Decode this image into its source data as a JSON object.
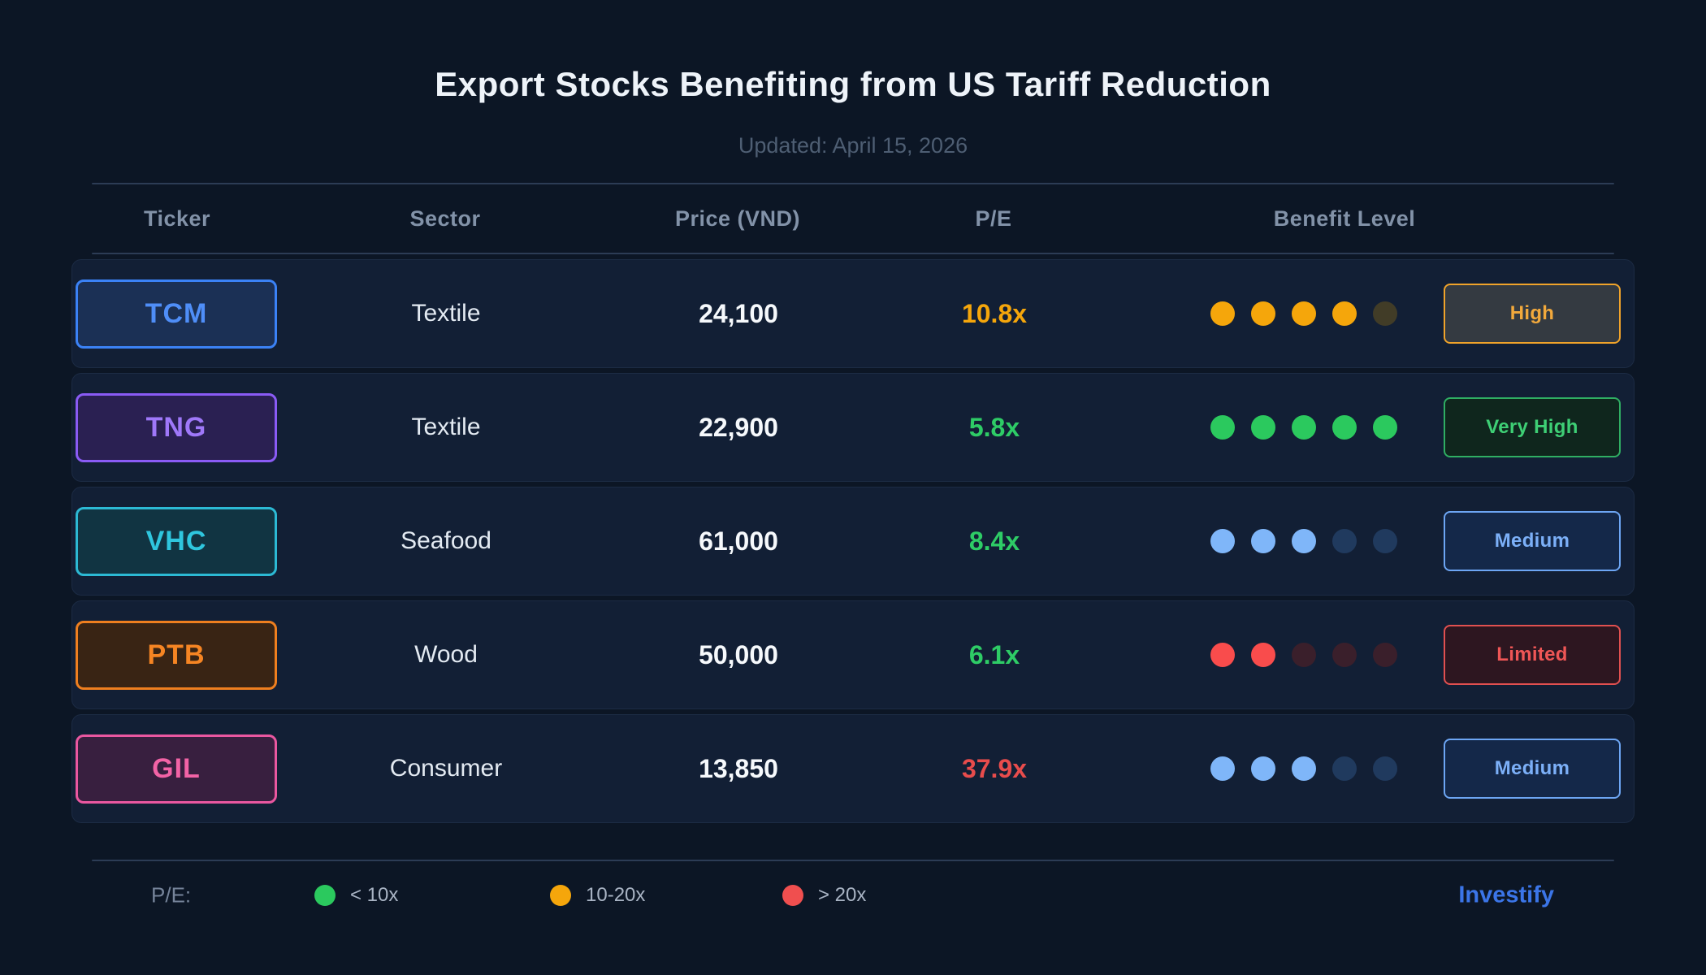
{
  "header": {
    "title": "Export Stocks Benefiting from US Tariff Reduction",
    "updated": "Updated: April 15, 2026"
  },
  "chart_data": {
    "type": "table",
    "columns": [
      "Ticker",
      "Sector",
      "Price (VND)",
      "P/E",
      "Benefit Level"
    ],
    "rows": [
      {
        "ticker": "TCM",
        "ticker_color": "#4f8ef8",
        "ticker_border": "#3b82f6",
        "ticker_bg": "#1b3055",
        "sector": "Textile",
        "price": "24,100",
        "pe": "10.8x",
        "pe_color": "#f5a60b",
        "dots": {
          "filled": 4,
          "total": 5,
          "fill_color": "#f5a60b",
          "dim_color": "#413c27"
        },
        "benefit": {
          "label": "High",
          "color": "#f2a93c",
          "border": "#f0a32a",
          "bg": "#343a41"
        }
      },
      {
        "ticker": "TNG",
        "ticker_color": "#9f78f9",
        "ticker_border": "#8a5bf5",
        "ticker_bg": "#2a2052",
        "sector": "Textile",
        "price": "22,900",
        "pe": "5.8x",
        "pe_color": "#2ecc66",
        "dots": {
          "filled": 5,
          "total": 5,
          "fill_color": "#2bc95e",
          "dim_color": "#14301f"
        },
        "benefit": {
          "label": "Very High",
          "color": "#3ecf75",
          "border": "#2fae63",
          "bg": "#0f261d"
        }
      },
      {
        "ticker": "VHC",
        "ticker_color": "#2fc6de",
        "ticker_border": "#2cb9d4",
        "ticker_bg": "#113442",
        "sector": "Seafood",
        "price": "61,000",
        "pe": "8.4x",
        "pe_color": "#2ecc66",
        "dots": {
          "filled": 3,
          "total": 5,
          "fill_color": "#7fb6f9",
          "dim_color": "#203a5e"
        },
        "benefit": {
          "label": "Medium",
          "color": "#7cb0f8",
          "border": "#6da6f4",
          "bg": "#142849"
        }
      },
      {
        "ticker": "PTB",
        "ticker_color": "#f68523",
        "ticker_border": "#ef7f1f",
        "ticker_bg": "#392414",
        "sector": "Wood",
        "price": "50,000",
        "pe": "6.1x",
        "pe_color": "#2ecc66",
        "dots": {
          "filled": 2,
          "total": 5,
          "fill_color": "#f94c4c",
          "dim_color": "#3a1f2b"
        },
        "benefit": {
          "label": "Limited",
          "color": "#ef5656",
          "border": "#e15050",
          "bg": "#2d1620"
        }
      },
      {
        "ticker": "GIL",
        "ticker_color": "#f263a6",
        "ticker_border": "#ea57a0",
        "ticker_bg": "#381f3f",
        "sector": "Consumer",
        "price": "13,850",
        "pe": "37.9x",
        "pe_color": "#e84c4c",
        "dots": {
          "filled": 3,
          "total": 5,
          "fill_color": "#7fb6f9",
          "dim_color": "#203a5e"
        },
        "benefit": {
          "label": "Medium",
          "color": "#7cb0f8",
          "border": "#6da6f4",
          "bg": "#142849"
        }
      }
    ]
  },
  "legend": {
    "label": "P/E:",
    "items": [
      {
        "label": "< 10x",
        "color": "#2bc95e"
      },
      {
        "label": "10-20x",
        "color": "#f5a60b"
      },
      {
        "label": "> 20x",
        "color": "#f04f4f"
      }
    ]
  },
  "brand": {
    "label": "Investify",
    "color": "#3b75e8"
  }
}
